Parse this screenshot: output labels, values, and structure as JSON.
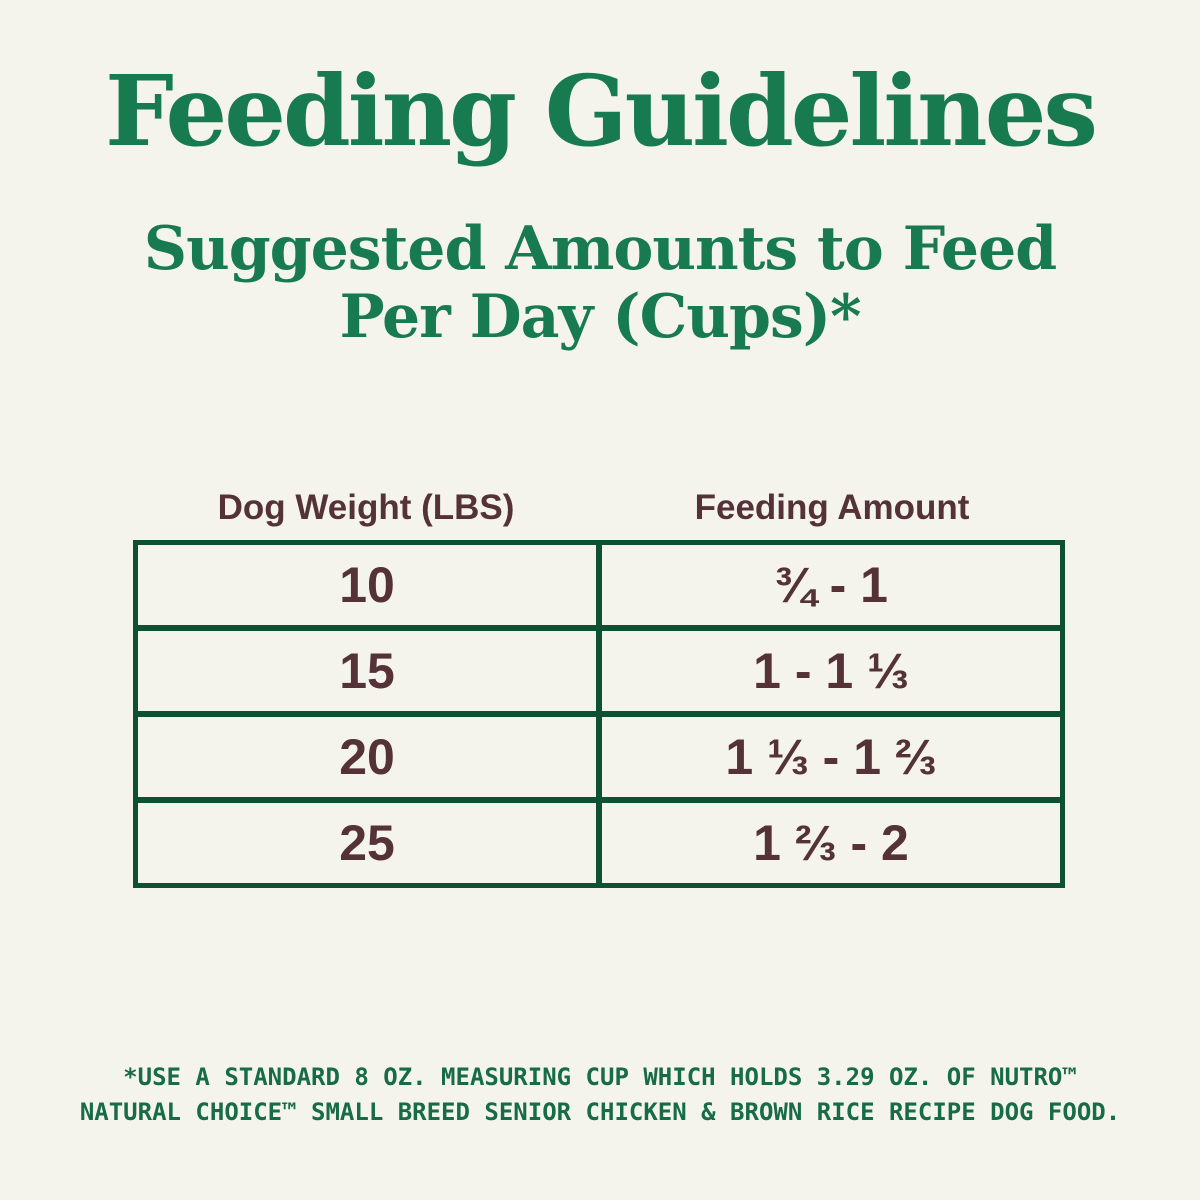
{
  "page": {
    "title": "Feeding Guidelines",
    "subtitle_line1": "Suggested Amounts to Feed",
    "subtitle_line2": "Per Day (Cups)*",
    "footnote_line1": "*USE A STANDARD 8 OZ. MEASURING CUP WHICH HOLDS 3.29 OZ. OF NUTRO™",
    "footnote_line2": "NATURAL CHOICE™ SMALL BREED SENIOR CHICKEN & BROWN RICE RECIPE DOG FOOD."
  },
  "table": {
    "columns": [
      "Dog Weight (LBS)",
      "Feeding Amount"
    ],
    "rows": [
      {
        "weight": "10",
        "amount": "¾ - 1"
      },
      {
        "weight": "15",
        "amount": "1 - 1 ⅓"
      },
      {
        "weight": "20",
        "amount": "1 ⅓ - 1 ⅔"
      },
      {
        "weight": "25",
        "amount": "1 ⅔ - 2"
      }
    ]
  },
  "colors": {
    "background": "#f4f4ed",
    "heading_green": "#187a4f",
    "footnote_green": "#176b46",
    "table_border_green": "#0d5132",
    "text_maroon": "#553238"
  }
}
